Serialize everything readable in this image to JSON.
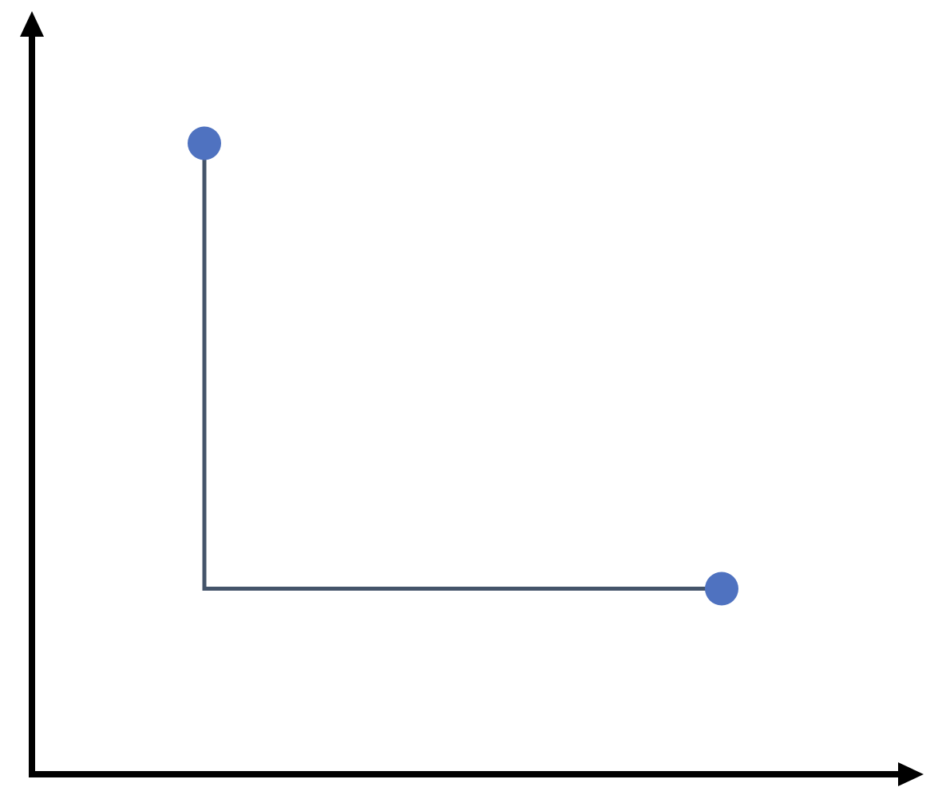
{
  "chart_data": {
    "type": "line",
    "title": "",
    "xlabel": "",
    "ylabel": "",
    "grid": false,
    "xlim": [
      0,
      10
    ],
    "ylim": [
      0,
      10
    ],
    "connector": "elbow-down-then-right",
    "points": [
      {
        "x": 2,
        "y": 8.5
      },
      {
        "x": 8,
        "y": 2.5
      }
    ]
  },
  "colors": {
    "axis": "#000000",
    "connector": "#44546a",
    "point": "#4f72c0",
    "background": "#ffffff"
  }
}
